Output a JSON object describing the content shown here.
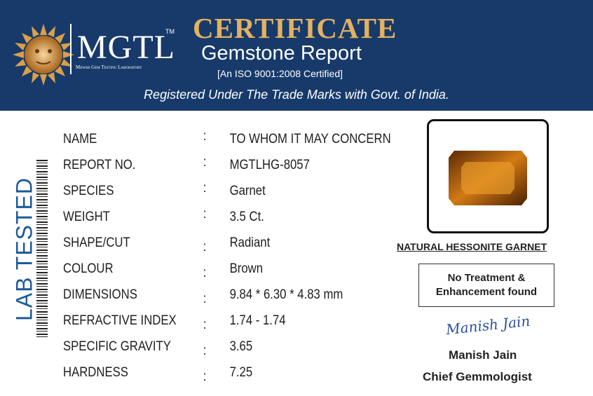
{
  "header": {
    "logo_text": "MGTL",
    "trademark": "TM",
    "logo_subtitle": "Mewar Gem Testing Laboratory",
    "title": "CERTIFICATE",
    "subtitle": "Gemstone Report",
    "certification": "[An ISO 9001:2008 Certified]",
    "registration": "Registered Under The Trade Marks with Govt. of India."
  },
  "side_label": "LAB TESTED",
  "separator": ":",
  "table": {
    "rows": [
      [
        "NAME",
        "TO WHOM IT MAY CONCERN"
      ],
      [
        "REPORT NO.",
        "MGTLHG-8057"
      ],
      [
        "SPECIES",
        "Garnet"
      ],
      [
        "WEIGHT",
        "3.5 Ct."
      ],
      [
        "SHAPE/CUT",
        "Radiant"
      ],
      [
        "COLOUR",
        "Brown"
      ],
      [
        "DIMENSIONS",
        "9.84 * 6.30 * 4.83 mm"
      ],
      [
        "REFRACTIVE INDEX",
        "1.74 - 1.74"
      ],
      [
        "SPECIFIC GRAVITY",
        "3.65"
      ],
      [
        "HARDNESS",
        "7.25"
      ]
    ]
  },
  "gem_caption": "NATURAL HESSONITE GARNET",
  "treatment_note": "No Treatment & Enhancement found",
  "signature": "Manish Jain",
  "signatory": {
    "name": "Manish Jain",
    "role": "Chief Gemmologist"
  }
}
